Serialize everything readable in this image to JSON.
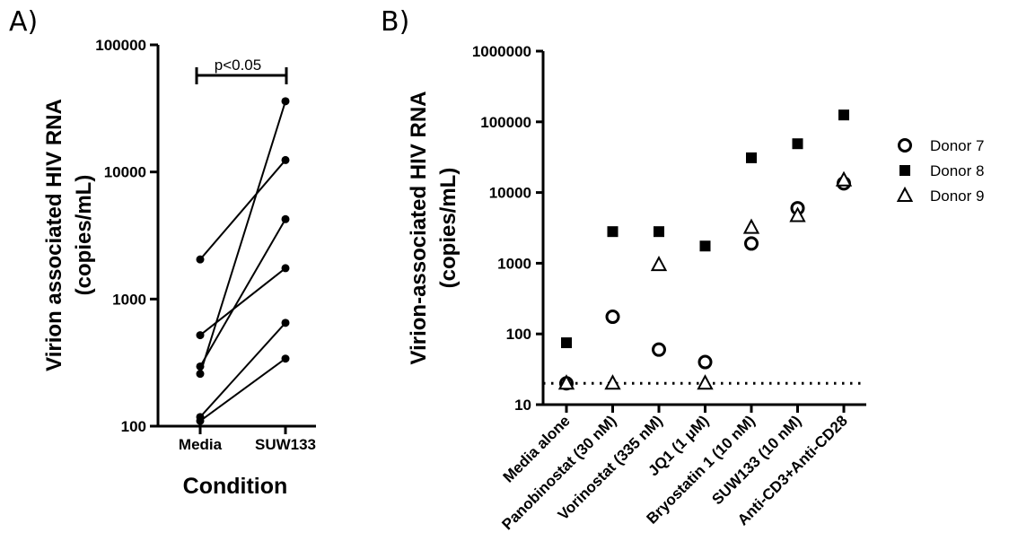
{
  "panel_labels": {
    "a": "A)",
    "b": "B)"
  },
  "chart_data": [
    {
      "type": "line",
      "panel": "A)",
      "xlabel": "Condition",
      "ylabel_line1": "Virion associated HIV  RNA",
      "ylabel_line2": "(copies/mL)",
      "yscale": "log",
      "ylim": [
        100,
        100000
      ],
      "yticks": [
        "100",
        "1000",
        "10000",
        "100000"
      ],
      "categories": [
        "Media",
        "SUW133"
      ],
      "annotation": "p<0.05",
      "pairs": [
        [
          2050,
          12400
        ],
        [
          520,
          1750
        ],
        [
          295,
          4250
        ],
        [
          258,
          36000
        ],
        [
          118,
          650
        ],
        [
          110,
          340
        ]
      ]
    },
    {
      "type": "scatter",
      "panel": "B)",
      "ylabel_line1": "Virion-associated HIV RNA",
      "ylabel_line2": "(copies/mL)",
      "yscale": "log",
      "ylim": [
        10,
        1000000
      ],
      "yticks": [
        "10",
        "100",
        "1000",
        "10000",
        "100000",
        "1000000"
      ],
      "categories": [
        "Media alone",
        "Panobinostat (30 nM)",
        "Vorinostat (335 nM)",
        "JQ1 (1 μM)",
        "Bryostatin 1 (10 nM)",
        "SUW133 (10 nM)",
        "Anti-CD3+Anti-CD28"
      ],
      "reference_line": 20,
      "legend_position": "right",
      "series": [
        {
          "name": "Donor 7",
          "marker": "open-circle",
          "values": [
            20,
            175,
            60,
            40,
            1900,
            6000,
            13500
          ]
        },
        {
          "name": "Donor 8",
          "marker": "filled-square",
          "values": [
            75,
            2800,
            2800,
            1750,
            31000,
            49000,
            125000
          ]
        },
        {
          "name": "Donor 9",
          "marker": "open-triangle",
          "values": [
            20,
            20,
            950,
            20,
            3200,
            4700,
            15000
          ]
        }
      ]
    }
  ]
}
